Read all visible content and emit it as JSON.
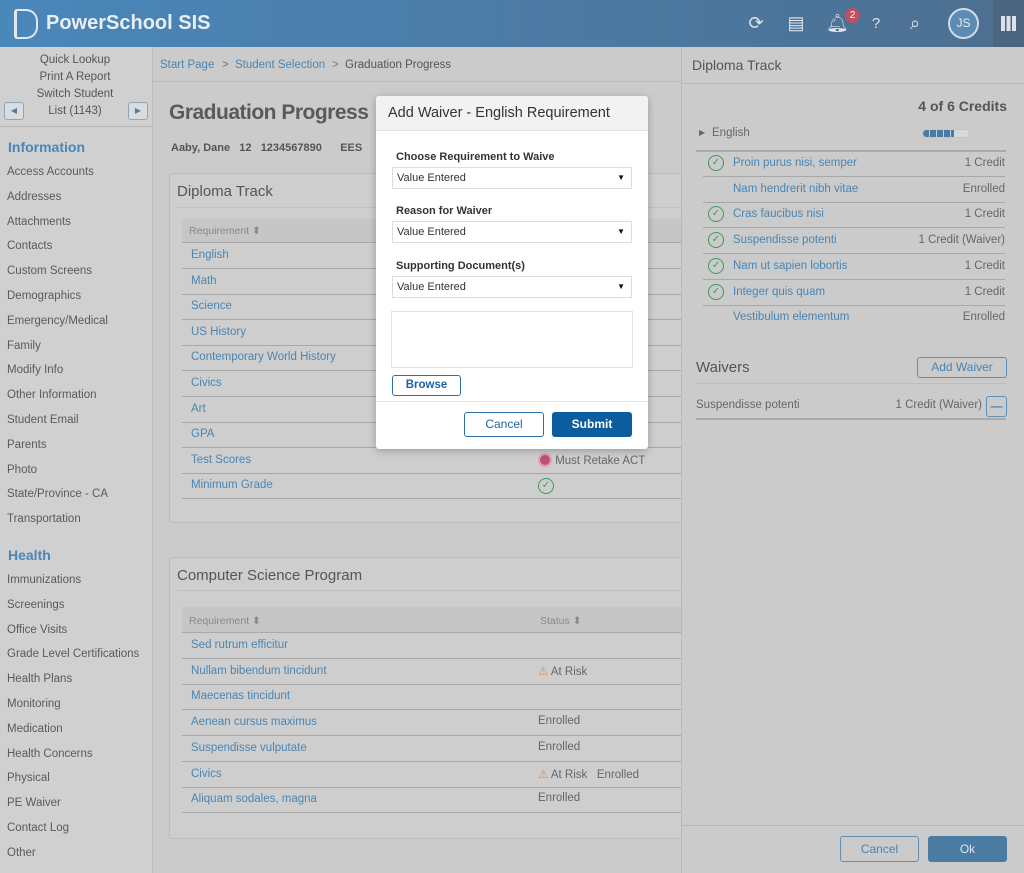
{
  "header": {
    "app_title": "PowerSchool SIS",
    "notification_count": "2",
    "user_initials": "JS",
    "icons": [
      "refresh-icon",
      "print-icon",
      "bell-icon",
      "help-icon",
      "search-icon",
      "apps-grid-icon"
    ]
  },
  "sidebar": {
    "quick": [
      "Quick Lookup",
      "Print A Report",
      "Switch Student",
      "List (1143)"
    ],
    "information_title": "Information",
    "information": [
      "Access Accounts",
      "Addresses",
      "Attachments",
      "Contacts",
      "Custom Screens",
      "Demographics",
      "Emergency/Medical",
      "Family",
      "Modify Info",
      "Other Information",
      "Student Email",
      "Parents",
      "Photo",
      "State/Province - CA",
      "Transportation"
    ],
    "health_title": "Health",
    "health": [
      "Immunizations",
      "Screenings",
      "Office Visits",
      "Grade Level Certifications",
      "Health Plans",
      "Monitoring",
      "Medication",
      "Health Concerns",
      "Physical",
      "PE Waiver",
      "Contact Log",
      "Other"
    ]
  },
  "breadcrumb": {
    "start": "Start Page",
    "selection": "Student Selection",
    "current": "Graduation Progress",
    "sep": ">"
  },
  "page": {
    "title": "Graduation Progress",
    "student": "Aaby, Dane",
    "grade": "12",
    "id": "1234567890",
    "school": "EES"
  },
  "diploma": {
    "title": "Diploma Track",
    "col_requirement": "Requirement",
    "rows": [
      {
        "name": "English",
        "status": ""
      },
      {
        "name": "Math",
        "status": ""
      },
      {
        "name": "Science",
        "status": ""
      },
      {
        "name": "US History",
        "status": ""
      },
      {
        "name": "Contemporary World History",
        "status": ""
      },
      {
        "name": "Civics",
        "status": ""
      },
      {
        "name": "Art",
        "status": ""
      },
      {
        "name": "GPA",
        "status": ""
      },
      {
        "name": "Test Scores",
        "status": "Must Retake ACT"
      },
      {
        "name": "Minimum Grade",
        "status": ""
      }
    ]
  },
  "cs": {
    "title": "Computer Science Program",
    "col_requirement": "Requirement",
    "col_status": "Status",
    "rows": [
      {
        "name": "Sed rutrum efficitur",
        "status": ""
      },
      {
        "name": "Nullam bibendum tincidunt",
        "status": "At Risk"
      },
      {
        "name": "Maecenas tincidunt",
        "status": ""
      },
      {
        "name": "Aenean cursus maximus",
        "status": "Enrolled"
      },
      {
        "name": "Suspendisse vulputate",
        "status": "Enrolled"
      },
      {
        "name": "Civics",
        "status": "At Risk   Enrolled"
      },
      {
        "name": "Aliquam sodales, magna",
        "status": "Enrolled"
      }
    ]
  },
  "right": {
    "title": "Diploma Track",
    "credits": "4 of 6 Credits",
    "group": "English",
    "progress_fraction": 0.67,
    "courses": [
      {
        "name": "Proin purus nisi, semper",
        "value": "1 Credit",
        "done": true
      },
      {
        "name": "Nam hendrerit nibh vitae",
        "value": "Enrolled",
        "done": false
      },
      {
        "name": "Cras faucibus nisi",
        "value": "1 Credit",
        "done": true
      },
      {
        "name": "Suspendisse potenti",
        "value": "1 Credit (Waiver)",
        "done": true
      },
      {
        "name": "Nam ut sapien lobortis",
        "value": "1 Credit",
        "done": true
      },
      {
        "name": "Integer quis quam",
        "value": "1 Credit",
        "done": true
      },
      {
        "name": "Vestibulum elementum",
        "value": "Enrolled",
        "done": false
      }
    ],
    "waivers_title": "Waivers",
    "add_waiver": "Add Waiver",
    "waiver": {
      "name": "Suspendisse potenti",
      "value": "1 Credit (Waiver)"
    },
    "cancel": "Cancel",
    "ok": "Ok"
  },
  "modal": {
    "title": "Add Waiver - English Requirement",
    "label1": "Choose Requirement to Waive",
    "value1": "Value Entered",
    "label2": "Reason for Waiver",
    "value2": "Value Entered",
    "label3": "Supporting Document(s)",
    "value3": "Value Entered",
    "browse": "Browse",
    "cancel": "Cancel",
    "submit": "Submit"
  },
  "colors": {
    "header": "#4a87ba",
    "link": "#4a85b2",
    "primary": "#0b5d9e",
    "success": "#3f9a5a",
    "warning": "#e08a3c"
  }
}
